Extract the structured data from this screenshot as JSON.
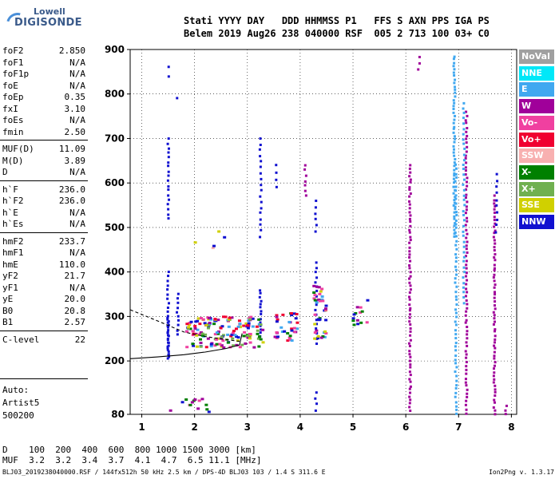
{
  "logo": {
    "line1": "Lowell",
    "line2": "DIGISONDE"
  },
  "header": {
    "line1": "Stati YYYY DAY   DDD HHMMSS P1   FFS S AXN PPS IGA PS",
    "line2": "Belem 2019 Aug26 238 040000 RSF  005 2 713 100 03+ C0"
  },
  "params": [
    {
      "name": "foF2",
      "value": "2.850"
    },
    {
      "name": "foF1",
      "value": "N/A"
    },
    {
      "name": "foF1p",
      "value": "N/A"
    },
    {
      "name": "foE",
      "value": "N/A"
    },
    {
      "name": "foEp",
      "value": "0.35"
    },
    {
      "name": "fxI",
      "value": "3.10"
    },
    {
      "name": "foEs",
      "value": "N/A"
    },
    {
      "name": "fmin",
      "value": "2.50"
    },
    {
      "name": "MUF(D)",
      "value": "11.09"
    },
    {
      "name": "M(D)",
      "value": "3.89"
    },
    {
      "name": "D",
      "value": "N/A"
    },
    {
      "name": "h`F",
      "value": "236.0"
    },
    {
      "name": "h`F2",
      "value": "236.0"
    },
    {
      "name": "h`E",
      "value": "N/A"
    },
    {
      "name": "h`Es",
      "value": "N/A"
    },
    {
      "name": "hmF2",
      "value": "233.7"
    },
    {
      "name": "hmF1",
      "value": "N/A"
    },
    {
      "name": "hmE",
      "value": "110.0"
    },
    {
      "name": "yF2",
      "value": "21.7"
    },
    {
      "name": "yF1",
      "value": "N/A"
    },
    {
      "name": "yE",
      "value": "20.0"
    },
    {
      "name": "B0",
      "value": "20.8"
    },
    {
      "name": "B1",
      "value": "2.57"
    },
    {
      "name": "C-level",
      "value": "22"
    }
  ],
  "auto": {
    "line1": "Auto:",
    "line2": "Artist5",
    "line3": "500200"
  },
  "legend": [
    {
      "label": "NoVal",
      "color": "#a0a0a0"
    },
    {
      "label": "NNE",
      "color": "#00e8f8"
    },
    {
      "label": "E",
      "color": "#40a8f0"
    },
    {
      "label": "W",
      "color": "#a0009a"
    },
    {
      "label": "Vo-",
      "color": "#f040a0"
    },
    {
      "label": "Vo+",
      "color": "#f00030"
    },
    {
      "label": "SSW",
      "color": "#f8b0b0"
    },
    {
      "label": "X-",
      "color": "#008000"
    },
    {
      "label": "X+",
      "color": "#70b050"
    },
    {
      "label": "SSE",
      "color": "#d0d000"
    },
    {
      "label": "NNW",
      "color": "#1010d0"
    }
  ],
  "bottom": {
    "line1": "D    100  200  400  600  800 1000 1500 3000 [km]",
    "line2": "MUF  3.2  3.2  3.4  3.7  4.1  4.7  6.5 11.1 [MHz]"
  },
  "footer": {
    "left": "BLJ03_2019238040000.RSF / 144fx512h 50 kHz 2.5 km / DPS-4D BLJ03 103 / 1.4 S 311.6 E",
    "right": "Ion2Png v. 1.3.17"
  },
  "chart_data": {
    "type": "scatter",
    "x_ticks": [
      1,
      2,
      3,
      4,
      5,
      6,
      7,
      8
    ],
    "y_ticks": [
      80,
      200,
      300,
      400,
      500,
      600,
      700,
      800,
      900
    ],
    "xlim": [
      0.78,
      8.1
    ],
    "ylim": [
      80,
      900
    ],
    "grid": true,
    "legend_placement": "right",
    "curves": [
      {
        "style": "dashed",
        "points": [
          [
            0.78,
            315
          ],
          [
            1.3,
            290
          ],
          [
            1.8,
            265
          ],
          [
            2.2,
            255
          ],
          [
            2.6,
            248
          ],
          [
            2.85,
            244
          ]
        ]
      },
      {
        "style": "solid",
        "points": [
          [
            0.78,
            205
          ],
          [
            1.3,
            209
          ],
          [
            1.8,
            214
          ],
          [
            2.2,
            220
          ],
          [
            2.6,
            228
          ],
          [
            2.85,
            236
          ],
          [
            2.9,
            262
          ]
        ]
      }
    ],
    "traces": [
      {
        "color": "#1010d0",
        "x": 1.5,
        "y0": 205,
        "y1": 300,
        "n": 26
      },
      {
        "color": "#1010d0",
        "x": 1.5,
        "y0": 310,
        "y1": 400,
        "n": 10
      },
      {
        "color": "#1010d0",
        "x": 1.5,
        "y0": 520,
        "y1": 700,
        "n": 18
      },
      {
        "color": "#1010d0",
        "x": 1.5,
        "y0": 840,
        "y1": 862,
        "n": 2
      },
      {
        "color": "#1010d0",
        "x": 1.68,
        "y0": 260,
        "y1": 350,
        "n": 10
      },
      {
        "color": "#1010d0",
        "x": 1.68,
        "y0": 785,
        "y1": 795,
        "n": 1
      },
      {
        "color": "#1010d0",
        "x": 3.25,
        "y0": 255,
        "y1": 360,
        "n": 14
      },
      {
        "color": "#1010d0",
        "x": 3.25,
        "y0": 480,
        "y1": 700,
        "n": 18
      },
      {
        "color": "#1010d0",
        "x": 3.55,
        "y0": 590,
        "y1": 640,
        "n": 4
      },
      {
        "color": "#a0009a",
        "x": 4.1,
        "y0": 570,
        "y1": 640,
        "n": 7
      },
      {
        "color": "#1010d0",
        "x": 4.3,
        "y0": 240,
        "y1": 420,
        "n": 18
      },
      {
        "color": "#1010d0",
        "x": 4.3,
        "y0": 490,
        "y1": 560,
        "n": 6
      },
      {
        "color": "#1010d0",
        "x": 4.3,
        "y0": 90,
        "y1": 130,
        "n": 4
      },
      {
        "color": "#a0009a",
        "x": 6.08,
        "y0": 88,
        "y1": 640,
        "n": 70
      },
      {
        "color": "#a0009a",
        "x": 6.25,
        "y0": 855,
        "y1": 882,
        "n": 3
      },
      {
        "color": "#40a8f0",
        "x": 6.92,
        "y0": 480,
        "y1": 885,
        "n": 55
      },
      {
        "color": "#40a8f0",
        "x": 6.95,
        "y0": 80,
        "y1": 640,
        "n": 60
      },
      {
        "color": "#a0009a",
        "x": 7.15,
        "y0": 82,
        "y1": 760,
        "n": 78
      },
      {
        "color": "#40a8f0",
        "x": 7.1,
        "y0": 330,
        "y1": 780,
        "n": 40
      },
      {
        "color": "#a0009a",
        "x": 7.68,
        "y0": 82,
        "y1": 570,
        "n": 65
      },
      {
        "color": "#1010d0",
        "x": 7.72,
        "y0": 490,
        "y1": 620,
        "n": 10
      },
      {
        "color": "#a0009a",
        "x": 7.9,
        "y0": 80,
        "y1": 100,
        "n": 3
      }
    ],
    "clusters": [
      {
        "colors": [
          "#1010d0",
          "#f040a0",
          "#f00030",
          "#008000",
          "#40a8f0",
          "#a0009a",
          "#d0d000",
          "#70b050"
        ],
        "x0": 1.85,
        "x1": 3.3,
        "y0": 230,
        "y1": 300,
        "n": 160
      },
      {
        "colors": [
          "#1010d0",
          "#f040a0",
          "#f00030",
          "#008000",
          "#40a8f0",
          "#a0009a"
        ],
        "x0": 3.5,
        "x1": 3.95,
        "y0": 245,
        "y1": 310,
        "n": 35
      },
      {
        "colors": [
          "#1010d0",
          "#f040a0",
          "#008000",
          "#40a8f0",
          "#a0009a",
          "#d0d000"
        ],
        "x0": 4.25,
        "x1": 4.5,
        "y0": 250,
        "y1": 370,
        "n": 40
      },
      {
        "colors": [
          "#1010d0",
          "#008000",
          "#f040a0",
          "#a0009a"
        ],
        "x0": 5.0,
        "x1": 5.3,
        "y0": 270,
        "y1": 340,
        "n": 14
      },
      {
        "colors": [
          "#1010d0",
          "#f040a0",
          "#008000",
          "#a0009a"
        ],
        "x0": 1.5,
        "x1": 2.4,
        "y0": 85,
        "y1": 115,
        "n": 14
      },
      {
        "colors": [
          "#f8b0b0",
          "#1010d0",
          "#d0d000"
        ],
        "x0": 1.9,
        "x1": 2.7,
        "y0": 440,
        "y1": 520,
        "n": 5
      }
    ]
  }
}
